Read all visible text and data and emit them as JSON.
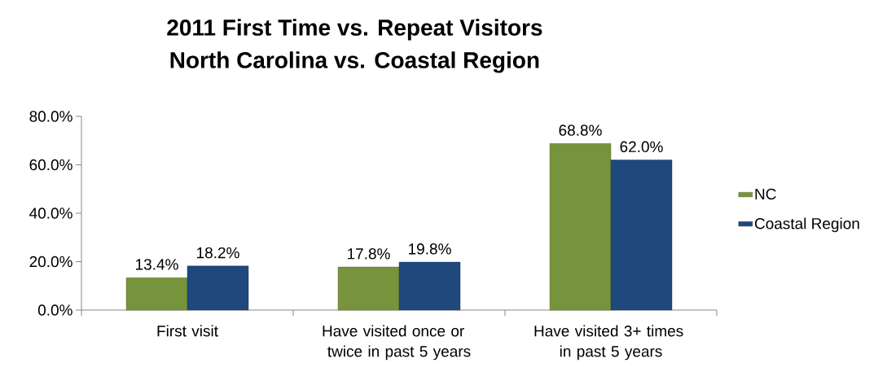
{
  "chart_data": {
    "type": "bar",
    "title": "2011 First Time vs. Repeat Visitors",
    "subtitle": "North Carolina vs. Coastal Region",
    "categories": [
      "First visit",
      "Have visited once or twice in past 5 years",
      "Have visited 3+ times in past 5 years"
    ],
    "series": [
      {
        "name": "NC",
        "color": "#77933c",
        "values": [
          13.4,
          17.8,
          68.8
        ],
        "value_labels": [
          "13.4%",
          "17.8%",
          "68.8%"
        ]
      },
      {
        "name": "Coastal Region",
        "color": "#1f497d",
        "values": [
          18.2,
          19.8,
          62.0
        ],
        "value_labels": [
          "18.2%",
          "19.8%",
          "62.0%"
        ]
      }
    ],
    "ylim": [
      0,
      80
    ],
    "yticks": [
      {
        "value": 0,
        "label": "0.0%"
      },
      {
        "value": 20,
        "label": "20.0%"
      },
      {
        "value": 40,
        "label": "40.0%"
      },
      {
        "value": 60,
        "label": "60.0%"
      },
      {
        "value": 80,
        "label": "80.0%"
      }
    ],
    "legend": "right"
  }
}
